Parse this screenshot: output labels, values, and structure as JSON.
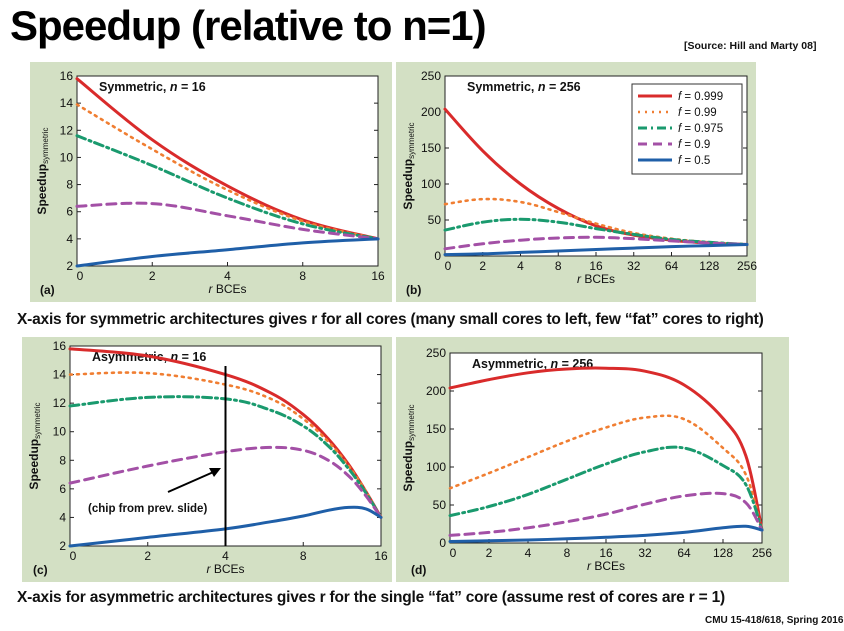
{
  "title": "Speedup (relative to n=1)",
  "source": "[Source: Hill and Marty 08]",
  "caption_top": "X-axis for symmetric architectures gives r for all cores (many small cores to left, few “fat” cores to right)",
  "caption_bottom": "X-axis for asymmetric architectures gives r for the single “fat” core (assume rest of cores are r = 1)",
  "footer": "CMU 15-418/618, Spring 2016",
  "colors": {
    "panel_bg": "#d3e0c4",
    "plot_bg": "#ffffff",
    "f0999": "#d92b2b",
    "f099": "#f07e32",
    "f0975": "#1a9a6e",
    "f09": "#a350a6",
    "f05": "#1f5fa8"
  },
  "legend": [
    {
      "label": "f = 0.999",
      "color": "#d92b2b",
      "dash": "solid"
    },
    {
      "label": "f = 0.99",
      "color": "#f07e32",
      "dash": "dotted"
    },
    {
      "label": "f = 0.975",
      "color": "#1a9a6e",
      "dash": "dashdot"
    },
    {
      "label": "f = 0.9",
      "color": "#a350a6",
      "dash": "dashed"
    },
    {
      "label": "f = 0.5",
      "color": "#1f5fa8",
      "dash": "solid"
    }
  ],
  "annotation": "(chip from prev. slide)",
  "chart_data": [
    {
      "type": "line",
      "panel": "(a)",
      "title": "Symmetric, n = 16",
      "xlabel": "r BCEs",
      "ylabel": "Speedup symmetric",
      "x": [
        1,
        2,
        4,
        8,
        16
      ],
      "x_ticks": [
        "0",
        "2",
        "4",
        "8",
        "16"
      ],
      "ylim": [
        2,
        16
      ],
      "y_ticks": [
        2,
        4,
        6,
        8,
        10,
        12,
        14,
        16
      ],
      "series": [
        {
          "name": "f = 0.999",
          "values": [
            15.8,
            11.3,
            7.9,
            5.4,
            4.0
          ]
        },
        {
          "name": "f = 0.99",
          "values": [
            13.9,
            10.6,
            7.6,
            5.3,
            4.0
          ]
        },
        {
          "name": "f = 0.975",
          "values": [
            11.6,
            9.4,
            7.0,
            5.1,
            4.0
          ]
        },
        {
          "name": "f = 0.9",
          "values": [
            6.4,
            6.6,
            5.7,
            4.7,
            4.0
          ]
        },
        {
          "name": "f = 0.5",
          "values": [
            2.0,
            2.7,
            3.2,
            3.7,
            4.0
          ]
        }
      ]
    },
    {
      "type": "line",
      "panel": "(b)",
      "title": "Symmetric, n = 256",
      "xlabel": "r BCEs",
      "ylabel": "Speedup symmetric",
      "x": [
        1,
        2,
        4,
        8,
        16,
        32,
        64,
        128,
        256
      ],
      "x_ticks": [
        "0",
        "2",
        "4",
        "8",
        "16",
        "32",
        "64",
        "128",
        "256"
      ],
      "ylim": [
        0,
        250
      ],
      "y_ticks": [
        0,
        50,
        100,
        150,
        200,
        250
      ],
      "series": [
        {
          "name": "f = 0.999",
          "values": [
            204,
            146,
            100,
            66,
            42,
            29,
            22,
            18,
            16
          ]
        },
        {
          "name": "f = 0.99",
          "values": [
            72,
            79,
            75,
            61,
            45,
            32,
            24,
            19,
            16
          ]
        },
        {
          "name": "f = 0.975",
          "values": [
            36,
            47,
            51,
            47,
            38,
            30,
            23,
            19,
            16
          ]
        },
        {
          "name": "f = 0.9",
          "values": [
            10,
            17,
            22,
            25,
            26,
            24,
            21,
            18,
            16
          ]
        },
        {
          "name": "f = 0.5",
          "values": [
            2,
            3,
            5,
            7,
            9,
            11,
            13,
            14.5,
            16
          ]
        }
      ]
    },
    {
      "type": "line",
      "panel": "(c)",
      "title": "Asymmetric, n = 16",
      "xlabel": "r BCEs",
      "ylabel": "Speedup symmetric",
      "x": [
        1,
        2,
        4,
        6,
        8,
        10,
        12,
        14,
        16
      ],
      "x_ticks": [
        "0",
        "2",
        "4",
        "8",
        "16"
      ],
      "ylim": [
        2,
        16
      ],
      "y_ticks": [
        2,
        4,
        6,
        8,
        10,
        12,
        14,
        16
      ],
      "series": [
        {
          "name": "f = 0.999",
          "values": [
            15.8,
            15.3,
            14.0,
            12.7,
            11.2,
            9.5,
            7.7,
            5.8,
            4.0
          ]
        },
        {
          "name": "f = 0.99",
          "values": [
            14.0,
            14.1,
            13.3,
            12.3,
            10.9,
            9.3,
            7.6,
            5.8,
            4.0
          ]
        },
        {
          "name": "f = 0.975",
          "values": [
            11.8,
            12.4,
            12.3,
            11.5,
            10.4,
            9.0,
            7.4,
            5.7,
            4.0
          ]
        },
        {
          "name": "f = 0.9",
          "values": [
            6.4,
            7.6,
            8.6,
            8.9,
            8.7,
            8.0,
            6.9,
            5.5,
            4.0
          ]
        },
        {
          "name": "f = 0.5",
          "values": [
            2.0,
            2.6,
            3.2,
            3.7,
            4.1,
            4.5,
            4.7,
            4.6,
            4.0
          ]
        }
      ]
    },
    {
      "type": "line",
      "panel": "(d)",
      "title": "Asymmetric, n = 256",
      "xlabel": "r BCEs",
      "ylabel": "Speedup symmetric",
      "x": [
        1,
        2,
        4,
        8,
        16,
        32,
        64,
        128,
        192,
        256
      ],
      "x_ticks": [
        "0",
        "2",
        "4",
        "8",
        "16",
        "32",
        "64",
        "128",
        "256"
      ],
      "ylim": [
        0,
        250
      ],
      "y_ticks": [
        0,
        50,
        100,
        150,
        200,
        250
      ],
      "series": [
        {
          "name": "f = 0.999",
          "values": [
            204,
            215,
            224,
            229,
            230,
            226,
            208,
            164,
            115,
            17
          ]
        },
        {
          "name": "f = 0.99",
          "values": [
            72,
            92,
            113,
            134,
            152,
            165,
            163,
            125,
            90,
            17
          ]
        },
        {
          "name": "f = 0.975",
          "values": [
            36,
            48,
            64,
            84,
            104,
            120,
            125,
            102,
            77,
            17
          ]
        },
        {
          "name": "f = 0.9",
          "values": [
            10,
            14,
            20,
            28,
            38,
            51,
            62,
            65,
            53,
            17
          ]
        },
        {
          "name": "f = 0.5",
          "values": [
            2,
            3,
            4,
            5.5,
            7.5,
            10,
            14,
            20,
            22,
            17
          ]
        }
      ]
    }
  ]
}
